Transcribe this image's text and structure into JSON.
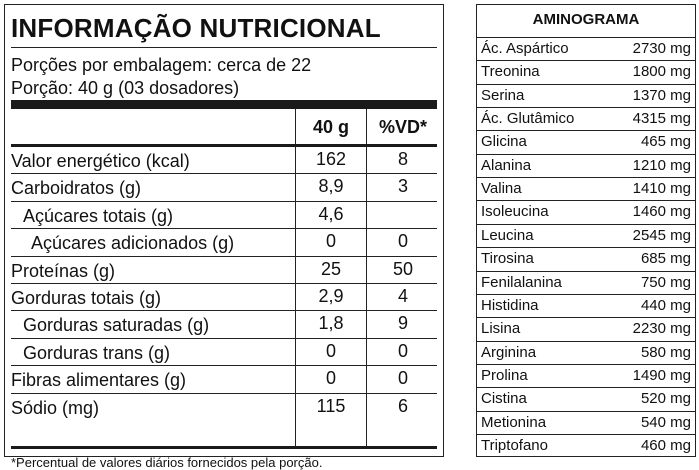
{
  "nutrition": {
    "title": "INFORMAÇÃO NUTRICIONAL",
    "servings_line": "Porções por embalagem: cerca de 22",
    "portion_line": "Porção: 40 g (03 dosadores)",
    "columns": {
      "amount": "40 g",
      "dv": "%VD*"
    },
    "rows": [
      {
        "label": "Valor energético (kcal)",
        "amount": "162",
        "dv": "8",
        "indent": 0
      },
      {
        "label": "Carboidratos (g)",
        "amount": "8,9",
        "dv": "3",
        "indent": 0
      },
      {
        "label": "Açúcares totais (g)",
        "amount": "4,6",
        "dv": "",
        "indent": 1
      },
      {
        "label": "Açúcares adicionados (g)",
        "amount": "0",
        "dv": "0",
        "indent": 2
      },
      {
        "label": "Proteínas (g)",
        "amount": "25",
        "dv": "50",
        "indent": 0
      },
      {
        "label": "Gorduras totais (g)",
        "amount": "2,9",
        "dv": "4",
        "indent": 0
      },
      {
        "label": "Gorduras saturadas (g)",
        "amount": "1,8",
        "dv": "9",
        "indent": 1
      },
      {
        "label": "Gorduras trans (g)",
        "amount": "0",
        "dv": "0",
        "indent": 1
      },
      {
        "label": "Fibras alimentares (g)",
        "amount": "0",
        "dv": "0",
        "indent": 0
      },
      {
        "label": "Sódio (mg)",
        "amount": "115",
        "dv": "6",
        "indent": 0
      }
    ],
    "footnote": "*Percentual de valores diários fornecidos pela porção."
  },
  "aminogram": {
    "title": "AMINOGRAMA",
    "rows": [
      {
        "name": "Ác. Aspártico",
        "value": "2730 mg"
      },
      {
        "name": "Treonina",
        "value": "1800 mg"
      },
      {
        "name": "Serina",
        "value": "1370 mg"
      },
      {
        "name": "Ác. Glutâmico",
        "value": "4315 mg"
      },
      {
        "name": "Glicina",
        "value": "465 mg"
      },
      {
        "name": "Alanina",
        "value": "1210 mg"
      },
      {
        "name": "Valina",
        "value": "1410 mg"
      },
      {
        "name": "Isoleucina",
        "value": "1460 mg"
      },
      {
        "name": "Leucina",
        "value": "2545 mg"
      },
      {
        "name": "Tirosina",
        "value": "685 mg"
      },
      {
        "name": "Fenilalanina",
        "value": "750 mg"
      },
      {
        "name": "Histidina",
        "value": "440 mg"
      },
      {
        "name": "Lisina",
        "value": "2230 mg"
      },
      {
        "name": "Arginina",
        "value": "580 mg"
      },
      {
        "name": "Prolina",
        "value": "1490 mg"
      },
      {
        "name": "Cistina",
        "value": "520 mg"
      },
      {
        "name": "Metionina",
        "value": "540 mg"
      },
      {
        "name": "Triptofano",
        "value": "460 mg"
      }
    ]
  }
}
